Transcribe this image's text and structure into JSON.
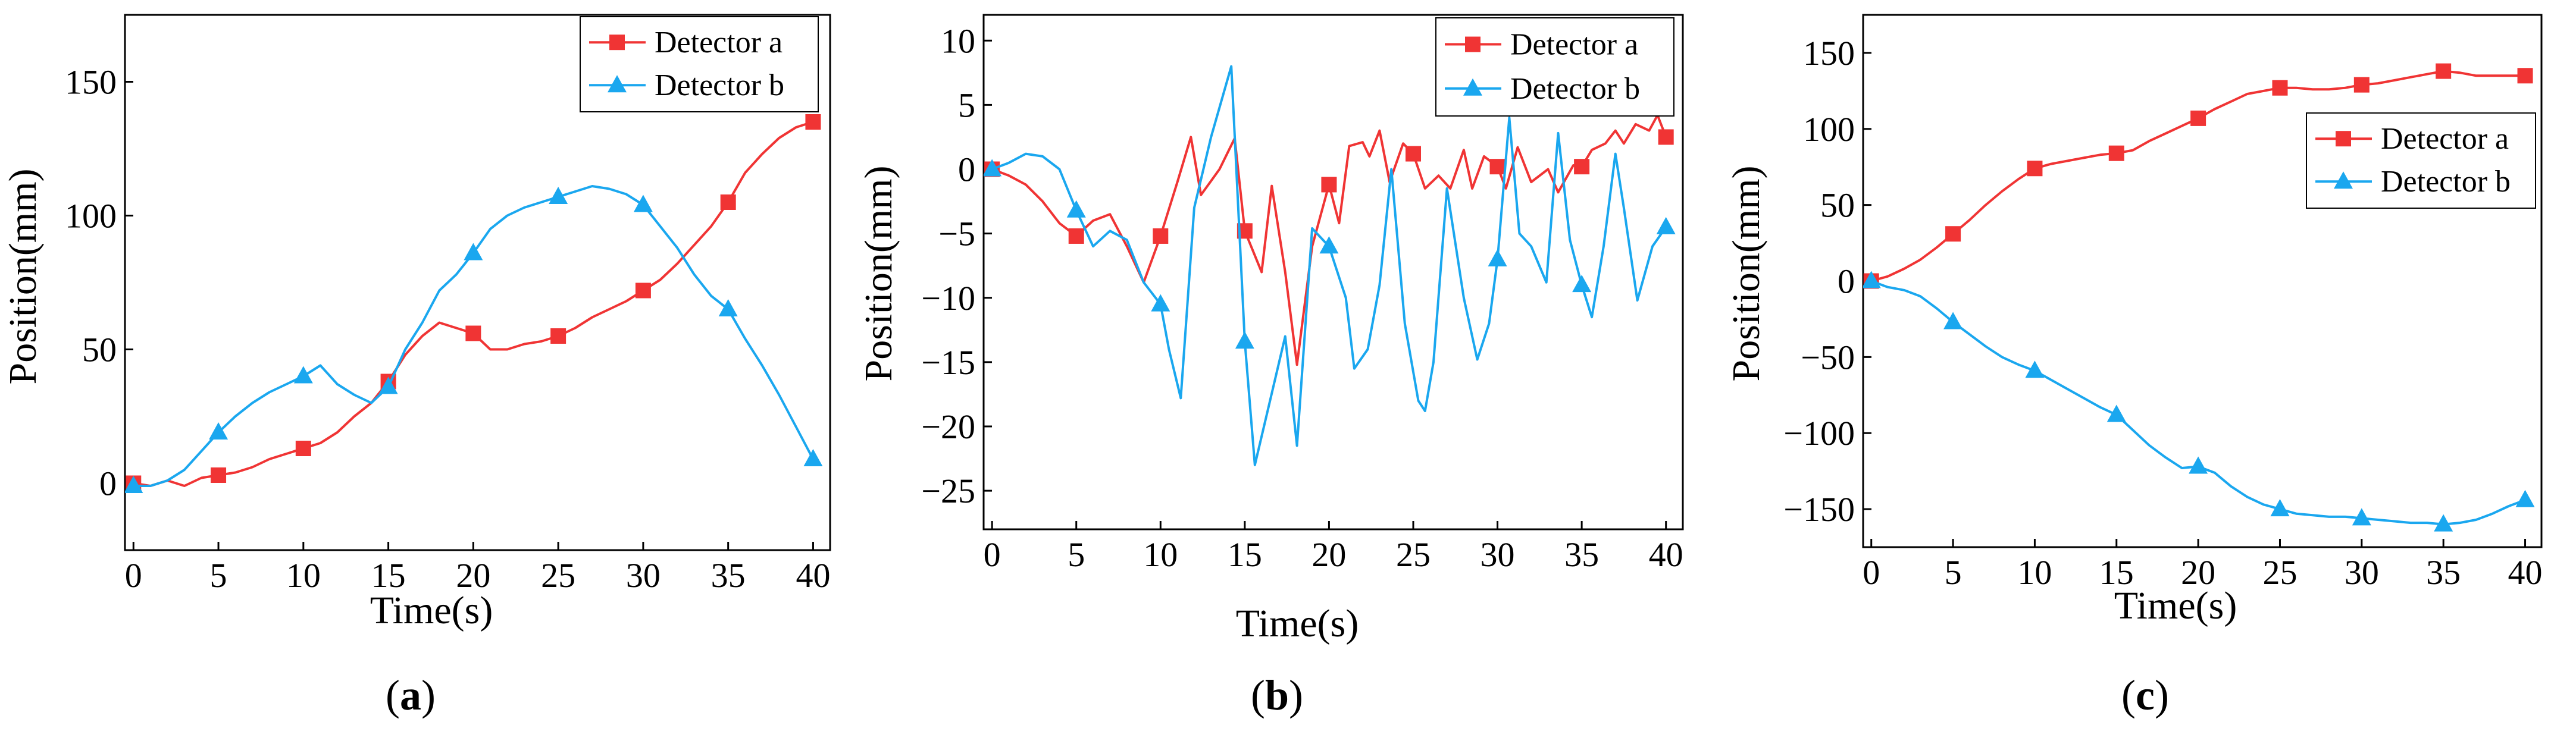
{
  "colors": {
    "detector_a": "#f03434",
    "detector_b": "#1aa7ef",
    "axis": "#000000"
  },
  "panels": [
    {
      "caption_letter": "a"
    },
    {
      "caption_letter": "b"
    },
    {
      "caption_letter": "c"
    }
  ],
  "chart_data": [
    {
      "type": "line",
      "xlabel": "Time(s)",
      "ylabel": "Position(mm)",
      "xlim": [
        -0.5,
        41
      ],
      "ylim": [
        -25,
        175
      ],
      "xticks": [
        0,
        5,
        10,
        15,
        20,
        25,
        30,
        35,
        40
      ],
      "yticks": [
        0,
        50,
        100,
        150
      ],
      "legend_position": "top-right",
      "series": [
        {
          "name": "Detector a",
          "marker": "square",
          "markers_at": [
            0,
            5,
            10,
            15,
            20,
            25,
            30,
            35,
            40
          ],
          "x": [
            0,
            1,
            2,
            3,
            4,
            5,
            6,
            7,
            8,
            9,
            10,
            11,
            12,
            13,
            14,
            15,
            16,
            17,
            18,
            19,
            20,
            21,
            22,
            23,
            24,
            25,
            26,
            27,
            28,
            29,
            30,
            31,
            32,
            33,
            34,
            35,
            36,
            37,
            38,
            39,
            40
          ],
          "y": [
            0,
            -1,
            1,
            -1,
            2,
            3,
            4,
            6,
            9,
            11,
            13,
            15,
            19,
            25,
            30,
            38,
            48,
            55,
            60,
            58,
            56,
            50,
            50,
            52,
            53,
            55,
            58,
            62,
            65,
            68,
            72,
            76,
            82,
            89,
            96,
            105,
            116,
            123,
            129,
            133,
            135
          ]
        },
        {
          "name": "Detector b",
          "marker": "triangle",
          "markers_at": [
            0,
            5,
            10,
            15,
            20,
            25,
            30,
            35,
            40
          ],
          "x": [
            0,
            1,
            2,
            3,
            4,
            5,
            6,
            7,
            8,
            9,
            10,
            11,
            12,
            13,
            14,
            15,
            16,
            17,
            18,
            19,
            20,
            21,
            22,
            23,
            24,
            25,
            26,
            27,
            28,
            29,
            30,
            31,
            32,
            33,
            34,
            35,
            36,
            37,
            38,
            39,
            40
          ],
          "y": [
            -1,
            -1,
            1,
            5,
            12,
            19,
            25,
            30,
            34,
            37,
            40,
            44,
            37,
            33,
            30,
            36,
            50,
            60,
            72,
            78,
            86,
            95,
            100,
            103,
            105,
            107,
            109,
            111,
            110,
            108,
            104,
            96,
            88,
            78,
            70,
            65,
            54,
            44,
            33,
            21,
            9
          ]
        }
      ]
    },
    {
      "type": "line",
      "xlabel": "Time(s)",
      "ylabel": "Position(mm)",
      "xlim": [
        -0.5,
        41
      ],
      "ylim": [
        -28,
        12
      ],
      "xticks": [
        0,
        5,
        10,
        15,
        20,
        25,
        30,
        35,
        40
      ],
      "yticks": [
        10,
        5,
        0,
        -5,
        -10,
        -15,
        -20,
        -25
      ],
      "legend_position": "top-right",
      "series": [
        {
          "name": "Detector a",
          "marker": "square",
          "markers_at": [
            0,
            5,
            10,
            15,
            20,
            25,
            30,
            35,
            40
          ],
          "x": [
            0,
            1,
            2,
            3,
            4,
            5,
            6,
            7,
            8,
            9,
            10,
            11,
            11.8,
            12.4,
            13.5,
            14.4,
            15,
            16,
            16.6,
            17.4,
            18.1,
            19,
            20,
            20.6,
            21.2,
            22,
            22.4,
            23,
            23.6,
            24.4,
            25,
            25.7,
            26.5,
            27.2,
            28,
            28.5,
            29.2,
            30,
            30.5,
            31.2,
            32,
            33,
            33.6,
            34.5,
            35,
            35.6,
            36.4,
            37,
            37.5,
            38.2,
            39,
            39.5,
            40
          ],
          "y": [
            0,
            -0.5,
            -1.2,
            -2.5,
            -4.2,
            -5.2,
            -4,
            -3.5,
            -6,
            -8.8,
            -5.2,
            -1,
            2.5,
            -2,
            0,
            2.4,
            -4.8,
            -8,
            -1.3,
            -8,
            -15.2,
            -6,
            -1.2,
            -4.2,
            1.8,
            2.1,
            1,
            3,
            -1,
            2,
            1.2,
            -1.5,
            -0.5,
            -1.5,
            1.5,
            -1.5,
            1,
            0.2,
            -1.5,
            1.7,
            -1,
            0,
            -1.8,
            0.3,
            0.2,
            1.5,
            2,
            3,
            2,
            3.5,
            3,
            4.2,
            2.5
          ]
        },
        {
          "name": "Detector b",
          "marker": "triangle",
          "markers_at": [
            0,
            5,
            10,
            15,
            20,
            25,
            30,
            35,
            40
          ],
          "x": [
            0,
            1,
            2,
            3,
            4,
            5,
            6,
            7,
            8,
            9,
            10,
            10.5,
            11.2,
            12,
            13,
            14.2,
            15,
            15.6,
            16.5,
            17.4,
            18.1,
            19,
            20,
            21,
            21.5,
            22.3,
            23,
            23.7,
            24.5,
            25.3,
            25.7,
            26.2,
            27,
            28,
            28.8,
            29.5,
            30,
            30.7,
            31.3,
            32,
            32.9,
            33.6,
            34.3,
            35,
            35.6,
            36.3,
            37,
            37.5,
            38.3,
            39.2,
            40
          ],
          "y": [
            0,
            0.5,
            1.2,
            1,
            0,
            -3.2,
            -6,
            -4.8,
            -5.5,
            -8.8,
            -10.5,
            -14,
            -17.8,
            -3,
            2.5,
            8,
            -13.4,
            -23,
            -18,
            -13,
            -21.5,
            -4.6,
            -6,
            -10,
            -15.5,
            -14,
            -9,
            0,
            -12,
            -18,
            -18.8,
            -15,
            -1.5,
            -10,
            -14.8,
            -12,
            -7,
            4,
            -5,
            -6,
            -8.8,
            2.8,
            -5.5,
            -9,
            -11.5,
            -6,
            1.2,
            -3,
            -10.2,
            -6,
            -4.5
          ]
        }
      ]
    },
    {
      "type": "line",
      "xlabel": "Time(s)",
      "ylabel": "Position(mm)",
      "xlim": [
        -0.5,
        41
      ],
      "ylim": [
        -175,
        175
      ],
      "xticks": [
        0,
        5,
        10,
        15,
        20,
        25,
        30,
        35,
        40
      ],
      "yticks": [
        150,
        100,
        50,
        0,
        -50,
        -100,
        -150
      ],
      "legend_position": "upper-right",
      "series": [
        {
          "name": "Detector a",
          "marker": "square",
          "markers_at": [
            0,
            5,
            10,
            15,
            20,
            25,
            30,
            35,
            40
          ],
          "x": [
            0,
            1,
            2,
            3,
            4,
            5,
            6,
            7,
            8,
            9,
            10,
            11,
            12,
            13,
            14,
            15,
            16,
            17,
            18,
            19,
            20,
            21,
            22,
            23,
            24,
            25,
            26,
            27,
            28,
            29,
            30,
            31,
            32,
            33,
            34,
            35,
            36,
            37,
            38,
            39,
            40
          ],
          "y": [
            0,
            3,
            8,
            14,
            22,
            31,
            40,
            50,
            59,
            67,
            74,
            77,
            79,
            81,
            83,
            84,
            86,
            92,
            97,
            102,
            107,
            113,
            118,
            123,
            125,
            127,
            127,
            126,
            126,
            127,
            129,
            130,
            132,
            134,
            136,
            138,
            137,
            135,
            135,
            135,
            135
          ]
        },
        {
          "name": "Detector b",
          "marker": "triangle",
          "markers_at": [
            0,
            5,
            10,
            15,
            20,
            25,
            30,
            35,
            40
          ],
          "x": [
            0,
            1,
            2,
            3,
            4,
            5,
            6,
            7,
            8,
            9,
            10,
            11,
            12,
            13,
            14,
            15,
            16,
            17,
            18,
            19,
            20,
            21,
            22,
            23,
            24,
            25,
            26,
            27,
            28,
            29,
            30,
            31,
            32,
            33,
            34,
            35,
            36,
            37,
            38,
            39,
            40
          ],
          "y": [
            0,
            -4,
            -6,
            -10,
            -18,
            -27,
            -35,
            -43,
            -50,
            -55,
            -59,
            -65,
            -71,
            -77,
            -83,
            -88,
            -98,
            -108,
            -116,
            -123,
            -122,
            -126,
            -135,
            -142,
            -147,
            -150,
            -153,
            -154,
            -155,
            -155,
            -156,
            -157,
            -158,
            -159,
            -159,
            -160,
            -159,
            -157,
            -153,
            -148,
            -144
          ]
        }
      ]
    }
  ]
}
